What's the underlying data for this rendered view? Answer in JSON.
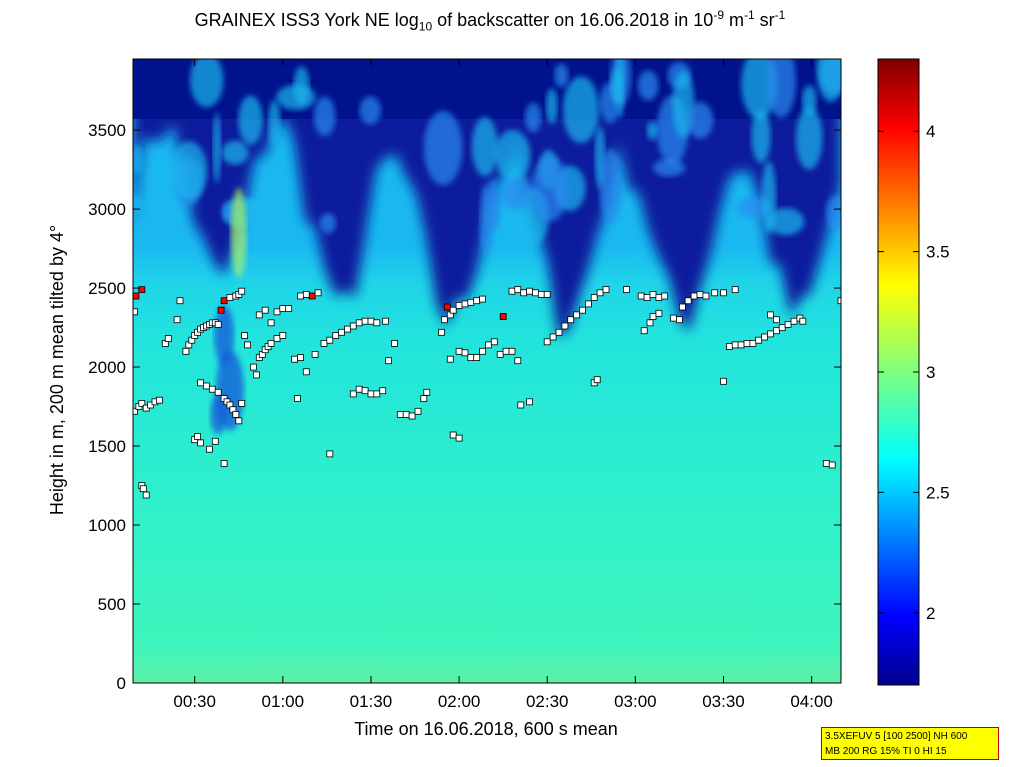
{
  "chart_data": {
    "type": "heatmap",
    "title_parts": {
      "a": "GRAINEX ISS3 York NE log",
      "sub": "10",
      "b": " of backscatter on 16.06.2018 in 10",
      "exp1": "-9",
      "c": " m",
      "exp2": "-1",
      "d": " sr",
      "exp3": "-1"
    },
    "xlabel": "Time on 16.06.2018, 600 s mean",
    "ylabel": "Height in m, 200 m mean tilted by 4°",
    "x_range_minutes": [
      9,
      250
    ],
    "xticks": [
      {
        "label": "00:30",
        "minutes": 30
      },
      {
        "label": "01:00",
        "minutes": 60
      },
      {
        "label": "01:30",
        "minutes": 90
      },
      {
        "label": "02:00",
        "minutes": 120
      },
      {
        "label": "02:30",
        "minutes": 150
      },
      {
        "label": "03:00",
        "minutes": 180
      },
      {
        "label": "03:30",
        "minutes": 210
      },
      {
        "label": "04:00",
        "minutes": 240
      }
    ],
    "ylim": [
      0,
      3950
    ],
    "yticks": [
      "0",
      "500",
      "1000",
      "1500",
      "2000",
      "2500",
      "3000",
      "3500"
    ],
    "colorbar": {
      "range": [
        1.7,
        4.3
      ],
      "ticks": [
        "2",
        "2.5",
        "3",
        "3.5",
        "4"
      ],
      "colormap": "jet"
    },
    "layers": {
      "surface_value": 2.75,
      "mixed_layer_value": 2.65,
      "mixed_layer_top_m": 2600,
      "upper_value": 1.75
    },
    "markers": {
      "description_series": "cloud base / layer height detections",
      "fill_colors": {
        "white": "#ffffff",
        "red": "#ff0000",
        "black": "#000000"
      },
      "points": [
        {
          "t": 9.5,
          "h": 2350
        },
        {
          "t": 10,
          "h": 2450,
          "c": "red"
        },
        {
          "t": 12,
          "h": 2490,
          "c": "red"
        },
        {
          "t": 9.5,
          "h": 1720
        },
        {
          "t": 11,
          "h": 1750
        },
        {
          "t": 12,
          "h": 1770
        },
        {
          "t": 13.5,
          "h": 1740
        },
        {
          "t": 15,
          "h": 1760
        },
        {
          "t": 16.5,
          "h": 1780
        },
        {
          "t": 18,
          "h": 1790
        },
        {
          "t": 12,
          "h": 1250
        },
        {
          "t": 13.5,
          "h": 1190
        },
        {
          "t": 12.5,
          "h": 1230
        },
        {
          "t": 20,
          "h": 2150
        },
        {
          "t": 21,
          "h": 2180
        },
        {
          "t": 24,
          "h": 2300
        },
        {
          "t": 25,
          "h": 2420
        },
        {
          "t": 27,
          "h": 2100
        },
        {
          "t": 28,
          "h": 2140
        },
        {
          "t": 29,
          "h": 2170
        },
        {
          "t": 30,
          "h": 2200
        },
        {
          "t": 31,
          "h": 2220
        },
        {
          "t": 32,
          "h": 2240
        },
        {
          "t": 33,
          "h": 2250
        },
        {
          "t": 34,
          "h": 2260
        },
        {
          "t": 35,
          "h": 2270
        },
        {
          "t": 36,
          "h": 2280
        },
        {
          "t": 37,
          "h": 2280
        },
        {
          "t": 38,
          "h": 2270
        },
        {
          "t": 39,
          "h": 2360,
          "c": "red"
        },
        {
          "t": 40,
          "h": 2420,
          "c": "red"
        },
        {
          "t": 42,
          "h": 2440
        },
        {
          "t": 44,
          "h": 2450
        },
        {
          "t": 45,
          "h": 2460
        },
        {
          "t": 46,
          "h": 2480
        },
        {
          "t": 30,
          "h": 1540
        },
        {
          "t": 31,
          "h": 1560
        },
        {
          "t": 32,
          "h": 1520
        },
        {
          "t": 35,
          "h": 1480
        },
        {
          "t": 37,
          "h": 1530
        },
        {
          "t": 40,
          "h": 1390
        },
        {
          "t": 32,
          "h": 1900
        },
        {
          "t": 34,
          "h": 1880
        },
        {
          "t": 36,
          "h": 1860
        },
        {
          "t": 38,
          "h": 1840
        },
        {
          "t": 40,
          "h": 1800
        },
        {
          "t": 41,
          "h": 1780
        },
        {
          "t": 42,
          "h": 1760
        },
        {
          "t": 43,
          "h": 1730
        },
        {
          "t": 44,
          "h": 1700
        },
        {
          "t": 45,
          "h": 1660
        },
        {
          "t": 46,
          "h": 1770
        },
        {
          "t": 47,
          "h": 2200
        },
        {
          "t": 48,
          "h": 2140
        },
        {
          "t": 50,
          "h": 2000
        },
        {
          "t": 51,
          "h": 1950
        },
        {
          "t": 52,
          "h": 2060
        },
        {
          "t": 53,
          "h": 2080
        },
        {
          "t": 54,
          "h": 2110
        },
        {
          "t": 55,
          "h": 2130
        },
        {
          "t": 56,
          "h": 2150
        },
        {
          "t": 58,
          "h": 2180
        },
        {
          "t": 60,
          "h": 2200
        },
        {
          "t": 52,
          "h": 2330
        },
        {
          "t": 54,
          "h": 2360
        },
        {
          "t": 56,
          "h": 2280
        },
        {
          "t": 58,
          "h": 2350
        },
        {
          "t": 60,
          "h": 2370
        },
        {
          "t": 62,
          "h": 2370
        },
        {
          "t": 66,
          "h": 2450
        },
        {
          "t": 68,
          "h": 2460
        },
        {
          "t": 70,
          "h": 2450,
          "c": "red"
        },
        {
          "t": 72,
          "h": 2470
        },
        {
          "t": 64,
          "h": 2050
        },
        {
          "t": 66,
          "h": 2060
        },
        {
          "t": 68,
          "h": 1970
        },
        {
          "t": 71,
          "h": 2080
        },
        {
          "t": 74,
          "h": 2150
        },
        {
          "t": 76,
          "h": 2170
        },
        {
          "t": 78,
          "h": 2200
        },
        {
          "t": 80,
          "h": 2220
        },
        {
          "t": 82,
          "h": 2240
        },
        {
          "t": 84,
          "h": 2260
        },
        {
          "t": 86,
          "h": 2280
        },
        {
          "t": 88,
          "h": 2290
        },
        {
          "t": 90,
          "h": 2290
        },
        {
          "t": 92,
          "h": 2280
        },
        {
          "t": 95,
          "h": 2290
        },
        {
          "t": 84,
          "h": 1830
        },
        {
          "t": 86,
          "h": 1860
        },
        {
          "t": 88,
          "h": 1850
        },
        {
          "t": 90,
          "h": 1830
        },
        {
          "t": 92,
          "h": 1830
        },
        {
          "t": 94,
          "h": 1850
        },
        {
          "t": 65,
          "h": 1800
        },
        {
          "t": 76,
          "h": 1450
        },
        {
          "t": 96,
          "h": 2040
        },
        {
          "t": 98,
          "h": 2150
        },
        {
          "t": 100,
          "h": 1700
        },
        {
          "t": 102,
          "h": 1700
        },
        {
          "t": 104,
          "h": 1690
        },
        {
          "t": 106,
          "h": 1720
        },
        {
          "t": 108,
          "h": 1800
        },
        {
          "t": 109,
          "h": 1840
        },
        {
          "t": 114,
          "h": 2220
        },
        {
          "t": 115,
          "h": 2300
        },
        {
          "t": 116,
          "h": 2380,
          "c": "red"
        },
        {
          "t": 117,
          "h": 2330
        },
        {
          "t": 118,
          "h": 2360
        },
        {
          "t": 120,
          "h": 2390
        },
        {
          "t": 122,
          "h": 2400
        },
        {
          "t": 124,
          "h": 2410
        },
        {
          "t": 126,
          "h": 2420
        },
        {
          "t": 128,
          "h": 2430
        },
        {
          "t": 117,
          "h": 2050
        },
        {
          "t": 118,
          "h": 1570
        },
        {
          "t": 120,
          "h": 1550
        },
        {
          "t": 120,
          "h": 2100
        },
        {
          "t": 122,
          "h": 2090
        },
        {
          "t": 124,
          "h": 2060
        },
        {
          "t": 126,
          "h": 2060
        },
        {
          "t": 128,
          "h": 2100
        },
        {
          "t": 130,
          "h": 2140
        },
        {
          "t": 132,
          "h": 2160
        },
        {
          "t": 134,
          "h": 2080
        },
        {
          "t": 135,
          "h": 2320,
          "c": "red"
        },
        {
          "t": 136,
          "h": 2100
        },
        {
          "t": 138,
          "h": 2100
        },
        {
          "t": 140,
          "h": 2040
        },
        {
          "t": 141,
          "h": 1760
        },
        {
          "t": 144,
          "h": 1780
        },
        {
          "t": 138,
          "h": 2480
        },
        {
          "t": 140,
          "h": 2490
        },
        {
          "t": 142,
          "h": 2470
        },
        {
          "t": 144,
          "h": 2480
        },
        {
          "t": 146,
          "h": 2470
        },
        {
          "t": 148,
          "h": 2460
        },
        {
          "t": 150,
          "h": 2460
        },
        {
          "t": 150,
          "h": 2160
        },
        {
          "t": 152,
          "h": 2190
        },
        {
          "t": 154,
          "h": 2220
        },
        {
          "t": 156,
          "h": 2260
        },
        {
          "t": 158,
          "h": 2300
        },
        {
          "t": 160,
          "h": 2330
        },
        {
          "t": 162,
          "h": 2360
        },
        {
          "t": 164,
          "h": 2400
        },
        {
          "t": 166,
          "h": 2440
        },
        {
          "t": 168,
          "h": 2470
        },
        {
          "t": 170,
          "h": 2490
        },
        {
          "t": 166,
          "h": 1900
        },
        {
          "t": 167,
          "h": 1920
        },
        {
          "t": 177,
          "h": 2490
        },
        {
          "t": 182,
          "h": 2450
        },
        {
          "t": 184,
          "h": 2440
        },
        {
          "t": 186,
          "h": 2460
        },
        {
          "t": 188,
          "h": 2440
        },
        {
          "t": 190,
          "h": 2450
        },
        {
          "t": 183,
          "h": 2230
        },
        {
          "t": 185,
          "h": 2280
        },
        {
          "t": 186,
          "h": 2320
        },
        {
          "t": 188,
          "h": 2340
        },
        {
          "t": 193,
          "h": 2310
        },
        {
          "t": 195,
          "h": 2300
        },
        {
          "t": 196,
          "h": 2380
        },
        {
          "t": 198,
          "h": 2420
        },
        {
          "t": 200,
          "h": 2450
        },
        {
          "t": 202,
          "h": 2460
        },
        {
          "t": 204,
          "h": 2450
        },
        {
          "t": 207,
          "h": 2470
        },
        {
          "t": 210,
          "h": 2470
        },
        {
          "t": 214,
          "h": 2490
        },
        {
          "t": 210,
          "h": 1910
        },
        {
          "t": 212,
          "h": 2130
        },
        {
          "t": 214,
          "h": 2140
        },
        {
          "t": 216,
          "h": 2140
        },
        {
          "t": 218,
          "h": 2150
        },
        {
          "t": 220,
          "h": 2150
        },
        {
          "t": 222,
          "h": 2170
        },
        {
          "t": 224,
          "h": 2190
        },
        {
          "t": 226,
          "h": 2210
        },
        {
          "t": 228,
          "h": 2230
        },
        {
          "t": 230,
          "h": 2250
        },
        {
          "t": 232,
          "h": 2270
        },
        {
          "t": 234,
          "h": 2290
        },
        {
          "t": 236,
          "h": 2310
        },
        {
          "t": 237,
          "h": 2290
        },
        {
          "t": 226,
          "h": 2330
        },
        {
          "t": 228,
          "h": 2300
        },
        {
          "t": 245,
          "h": 1390
        },
        {
          "t": 247,
          "h": 1380
        },
        {
          "t": 250,
          "h": 2420
        }
      ]
    }
  },
  "settings_box": {
    "line1": "3.5XEFUV 5 [100 2500] NH 600",
    "line2": "MB 200 RG 15% TI 0 HI 15"
  }
}
